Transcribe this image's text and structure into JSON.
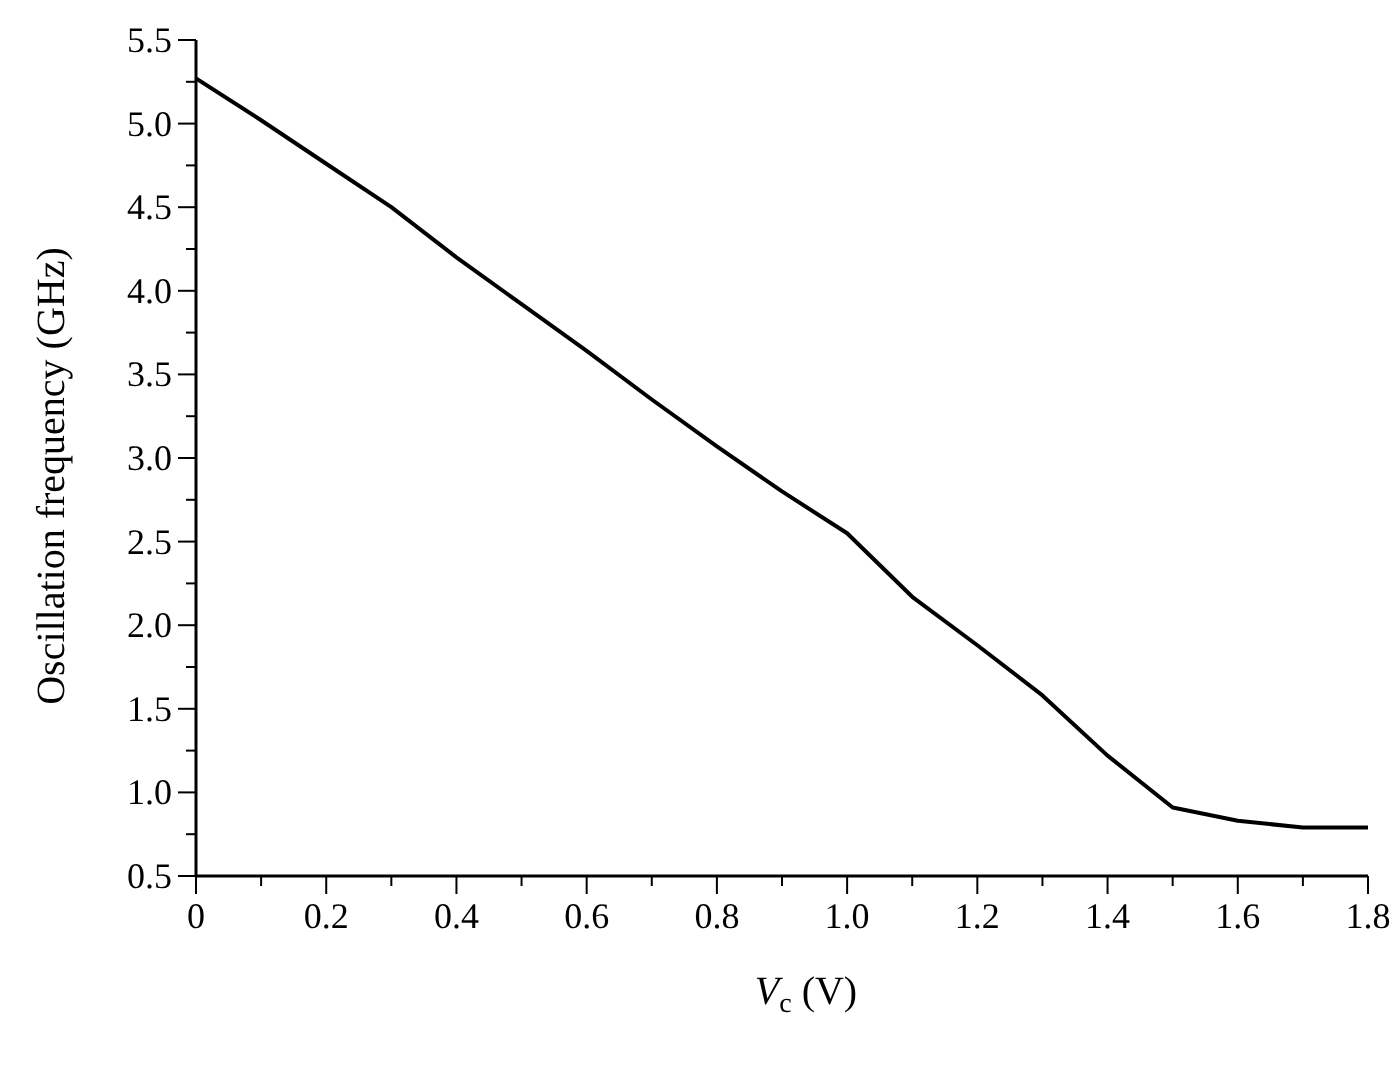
{
  "chart_data": {
    "type": "line",
    "xlabel": "V$_{c}$ (V)",
    "ylabel": "Oscillation frequency (GHz)",
    "x": [
      0,
      0.1,
      0.2,
      0.3,
      0.4,
      0.5,
      0.6,
      0.7,
      0.8,
      0.9,
      1.0,
      1.1,
      1.2,
      1.3,
      1.4,
      1.5,
      1.6,
      1.7,
      1.8
    ],
    "series": [
      {
        "color": "#000000",
        "values": [
          5.27,
          5.02,
          4.76,
          4.5,
          4.2,
          3.92,
          3.64,
          3.35,
          3.07,
          2.8,
          2.55,
          2.17,
          1.88,
          1.58,
          1.22,
          0.91,
          0.83,
          0.79,
          0.79
        ]
      }
    ],
    "xlim": [
      0,
      1.8
    ],
    "ylim": [
      0.5,
      5.5
    ],
    "xticks": [
      {
        "value": 0,
        "label": "0"
      },
      {
        "value": 0.1,
        "label": null
      },
      {
        "value": 0.2,
        "label": "0.2"
      },
      {
        "value": 0.3,
        "label": null
      },
      {
        "value": 0.4,
        "label": "0.4"
      },
      {
        "value": 0.5,
        "label": null
      },
      {
        "value": 0.6,
        "label": "0.6"
      },
      {
        "value": 0.7,
        "label": null
      },
      {
        "value": 0.8,
        "label": "0.8"
      },
      {
        "value": 0.9,
        "label": null
      },
      {
        "value": 1.0,
        "label": "1.0"
      },
      {
        "value": 1.1,
        "label": null
      },
      {
        "value": 1.2,
        "label": "1.2"
      },
      {
        "value": 1.3,
        "label": null
      },
      {
        "value": 1.4,
        "label": "1.4"
      },
      {
        "value": 1.5,
        "label": null
      },
      {
        "value": 1.6,
        "label": "1.6"
      },
      {
        "value": 1.7,
        "label": null
      },
      {
        "value": 1.8,
        "label": "1.8"
      }
    ],
    "yticks": [
      {
        "value": 0.5,
        "label": "0.5"
      },
      {
        "value": 0.75,
        "label": null
      },
      {
        "value": 1.0,
        "label": "1.0"
      },
      {
        "value": 1.25,
        "label": null
      },
      {
        "value": 1.5,
        "label": "1.5"
      },
      {
        "value": 1.75,
        "label": null
      },
      {
        "value": 2.0,
        "label": "2.0"
      },
      {
        "value": 2.25,
        "label": null
      },
      {
        "value": 2.5,
        "label": "2.5"
      },
      {
        "value": 2.75,
        "label": null
      },
      {
        "value": 3.0,
        "label": "3.0"
      },
      {
        "value": 3.25,
        "label": null
      },
      {
        "value": 3.5,
        "label": "3.5"
      },
      {
        "value": 3.75,
        "label": null
      },
      {
        "value": 4.0,
        "label": "4.0"
      },
      {
        "value": 4.25,
        "label": null
      },
      {
        "value": 4.5,
        "label": "4.5"
      },
      {
        "value": 4.75,
        "label": null
      },
      {
        "value": 5.0,
        "label": "5.0"
      },
      {
        "value": 5.25,
        "label": null
      },
      {
        "value": 5.5,
        "label": "5.5"
      }
    ],
    "grid": false,
    "legend": false,
    "marker": "none",
    "line_style": "solid"
  }
}
